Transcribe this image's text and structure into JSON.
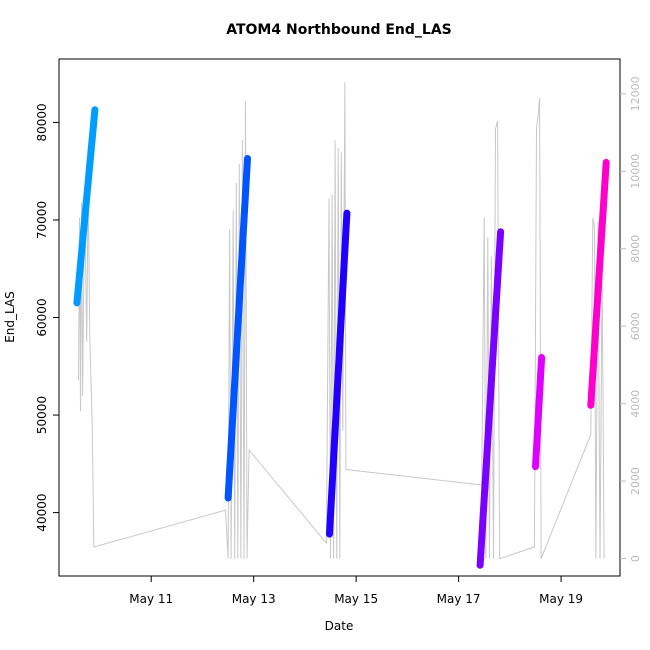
{
  "chart_data": {
    "type": "line",
    "title": "ATOM4 Northbound End_LAS",
    "xlabel": "Date",
    "ylabel": "End_LAS",
    "x_tick_labels": [
      "May 11",
      "May 13",
      "May 15",
      "May 17",
      "May 19"
    ],
    "x_ticks_day": [
      11,
      13,
      15,
      17,
      19
    ],
    "xlim_day": [
      9.2,
      20.15
    ],
    "y_left": {
      "ticks": [
        40000,
        50000,
        60000,
        70000,
        80000
      ],
      "ylim": [
        33500,
        86500
      ]
    },
    "y_right": {
      "ticks": [
        0,
        2000,
        4000,
        6000,
        8000,
        10000,
        12000
      ],
      "ylim": [
        -450,
        12900
      ],
      "color": "#bbbbbb"
    },
    "line_color": "#c8c8c8",
    "series": [
      {
        "x_start_day": 9.55,
        "x_end_day": 9.9,
        "y_start": 61500,
        "y_end": 81300,
        "color": "#009cff"
      },
      {
        "x_start_day": 12.5,
        "x_end_day": 12.88,
        "y_start": 41500,
        "y_end": 76300,
        "color": "#0055ff"
      },
      {
        "x_start_day": 14.48,
        "x_end_day": 14.82,
        "y_start": 37800,
        "y_end": 70700,
        "color": "#2200ff"
      },
      {
        "x_start_day": 17.42,
        "x_end_day": 17.82,
        "y_start": 34600,
        "y_end": 68800,
        "color": "#7a00ff"
      },
      {
        "x_start_day": 18.5,
        "x_end_day": 18.62,
        "y_start": 44700,
        "y_end": 55900,
        "color": "#e000ff"
      },
      {
        "x_start_day": 19.58,
        "x_end_day": 19.88,
        "y_start": 51000,
        "y_end": 75900,
        "color": "#ff00cc"
      }
    ],
    "background_trace": [
      [
        9.58,
        4600
      ],
      [
        9.6,
        8800
      ],
      [
        9.62,
        3800
      ],
      [
        9.64,
        9200
      ],
      [
        9.66,
        4200
      ],
      [
        9.7,
        9500
      ],
      [
        9.74,
        5600
      ],
      [
        9.77,
        9800
      ],
      [
        9.8,
        5800
      ],
      [
        9.85,
        3400
      ],
      [
        9.88,
        300
      ],
      [
        12.45,
        1250
      ],
      [
        12.5,
        0
      ],
      [
        12.53,
        8500
      ],
      [
        12.56,
        0
      ],
      [
        12.6,
        9000
      ],
      [
        12.63,
        0
      ],
      [
        12.66,
        9700
      ],
      [
        12.69,
        0
      ],
      [
        12.72,
        10200
      ],
      [
        12.75,
        0
      ],
      [
        12.78,
        10800
      ],
      [
        12.81,
        0
      ],
      [
        12.84,
        11800
      ],
      [
        12.87,
        0
      ],
      [
        12.91,
        2800
      ],
      [
        14.42,
        400
      ],
      [
        14.47,
        9300
      ],
      [
        14.5,
        0
      ],
      [
        14.53,
        9400
      ],
      [
        14.56,
        0
      ],
      [
        14.59,
        10800
      ],
      [
        14.62,
        0
      ],
      [
        14.65,
        10600
      ],
      [
        14.68,
        0
      ],
      [
        14.71,
        10500
      ],
      [
        14.74,
        3300
      ],
      [
        14.78,
        12300
      ],
      [
        14.8,
        2300
      ],
      [
        17.45,
        1900
      ],
      [
        17.5,
        8800
      ],
      [
        17.53,
        0
      ],
      [
        17.57,
        8300
      ],
      [
        17.6,
        0
      ],
      [
        17.64,
        7800
      ],
      [
        17.68,
        0
      ],
      [
        17.72,
        11100
      ],
      [
        17.76,
        11300
      ],
      [
        17.8,
        0
      ],
      [
        18.48,
        300
      ],
      [
        18.52,
        11100
      ],
      [
        18.55,
        11400
      ],
      [
        18.58,
        11900
      ],
      [
        18.61,
        0
      ],
      [
        19.58,
        3200
      ],
      [
        19.62,
        8800
      ],
      [
        19.65,
        8600
      ],
      [
        19.68,
        0
      ],
      [
        19.72,
        8700
      ],
      [
        19.76,
        0
      ],
      [
        19.8,
        7500
      ],
      [
        19.84,
        0
      ]
    ]
  }
}
